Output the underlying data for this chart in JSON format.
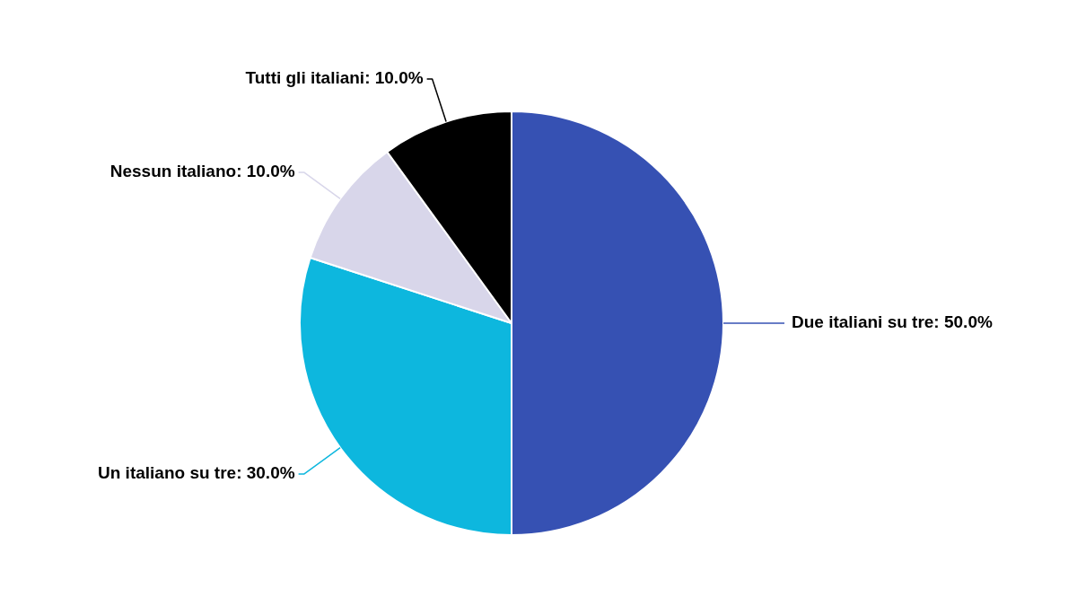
{
  "chart_data": {
    "type": "pie",
    "categories": [
      "Due italiani su tre",
      "Un italiano su tre",
      "Nessun italiano",
      "Tutti gli italiani"
    ],
    "values": [
      50,
      30,
      10,
      10
    ],
    "colors": [
      "#3651b3",
      "#0db7de",
      "#d8d6ea",
      "#000000"
    ],
    "value_labels": [
      "50.0%",
      "30.0%",
      "10.0%",
      "10.0%"
    ],
    "legend": false
  }
}
